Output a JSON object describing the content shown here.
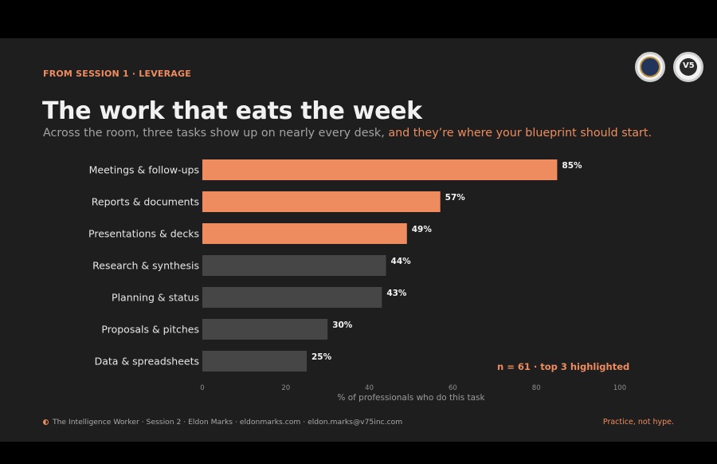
{
  "header": {
    "eyebrow": "FROM SESSION 1 · LEVERAGE",
    "title": "The work that eats the week",
    "subtitle_lead": "Across the room, three tasks show up on nearly every desk, ",
    "subtitle_accent": "and they’re where your blueprint should start."
  },
  "logos": [
    "crest-seal",
    "v75-monogram-seal"
  ],
  "colors": {
    "background": "#1e1e1e",
    "accent": "#ee8c5f",
    "highlight_bar": "#ee8c5f",
    "muted_bar": "#464646",
    "text": "#f1f1f1"
  },
  "chart_data": {
    "type": "bar",
    "orientation": "horizontal",
    "categories": [
      "Meetings & follow-ups",
      "Reports & documents",
      "Presentations & decks",
      "Research & synthesis",
      "Planning & status",
      "Proposals & pitches",
      "Data & spreadsheets"
    ],
    "values": [
      85,
      57,
      49,
      44,
      43,
      30,
      25
    ],
    "value_labels": [
      "85%",
      "57%",
      "49%",
      "44%",
      "43%",
      "30%",
      "25%"
    ],
    "highlighted_count": 3,
    "xlabel": "% of professionals who do this task",
    "xlim": [
      0,
      100
    ],
    "xticks": [
      0,
      20,
      40,
      60,
      80,
      100
    ],
    "grid": false,
    "legend": "none",
    "annotation": "n = 61  ·  top 3 highlighted"
  },
  "footer": {
    "text": "The Intelligence Worker · Session 2 · Eldon Marks · eldonmarks.com · eldon.marks@v75inc.com",
    "tagline": "Practice, not hype."
  }
}
